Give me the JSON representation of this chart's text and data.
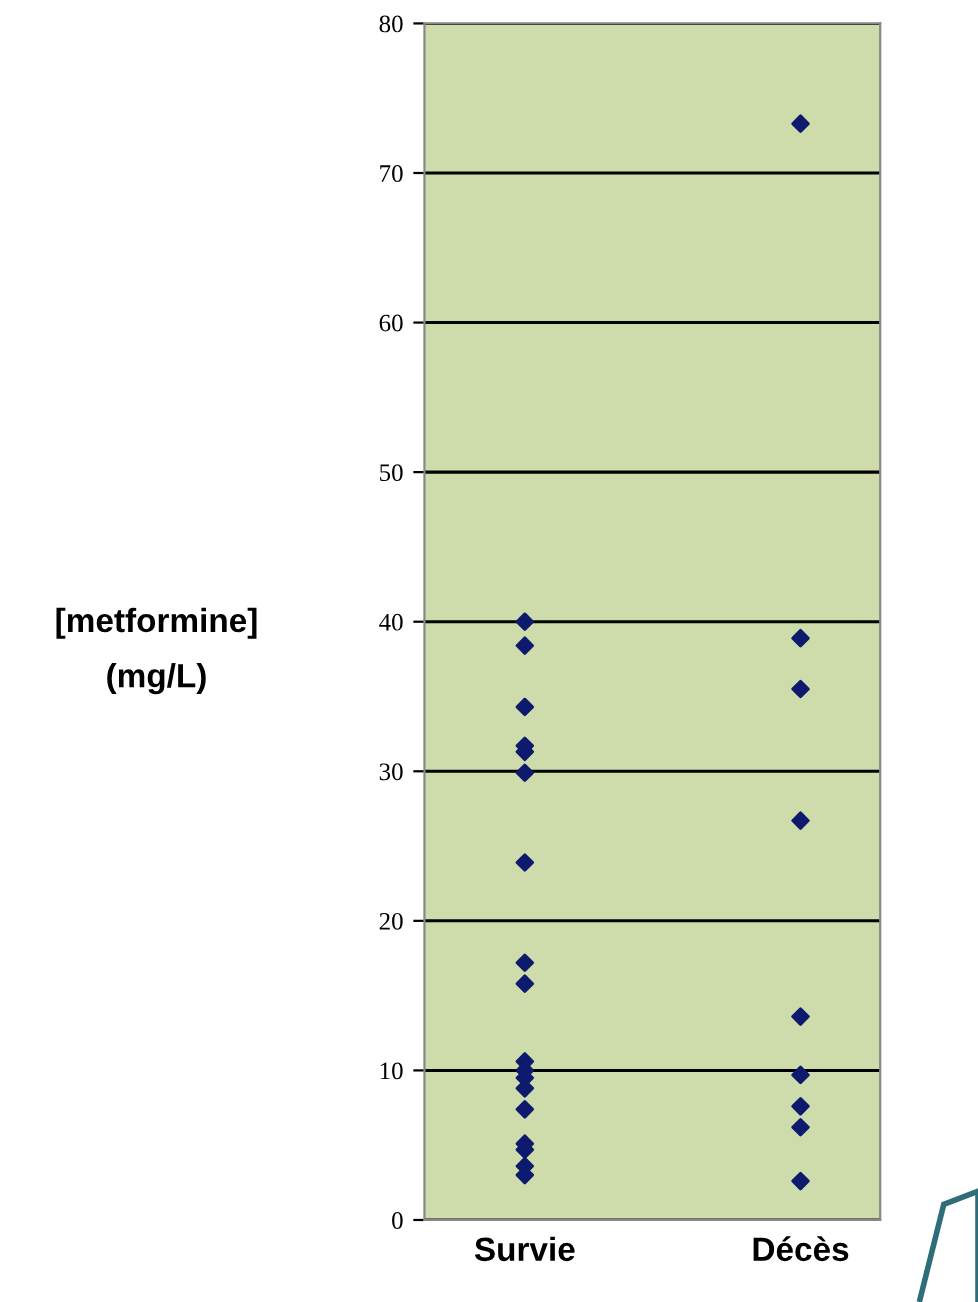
{
  "chart_data": {
    "type": "scatter",
    "ylabel": "[metformine]\n(mg/L)",
    "categories": [
      "Survie",
      "Décès"
    ],
    "series": [
      {
        "color": "#0d1a6e",
        "x": [
          "Survie",
          "Survie",
          "Survie",
          "Survie",
          "Survie",
          "Survie",
          "Survie",
          "Survie",
          "Survie",
          "Survie",
          "Survie",
          "Survie",
          "Survie",
          "Survie",
          "Survie",
          "Survie",
          "Survie",
          "Survie"
        ],
        "values": [
          40.0,
          38.4,
          34.3,
          31.7,
          31.3,
          29.9,
          23.9,
          17.2,
          15.8,
          10.6,
          10.0,
          9.5,
          8.8,
          7.4,
          5.1,
          4.7,
          3.6,
          3.0
        ]
      },
      {
        "color": "#0d1a6e",
        "x": [
          "Décès",
          "Décès",
          "Décès",
          "Décès",
          "Décès",
          "Décès",
          "Décès",
          "Décès",
          "Décès",
          "Décès"
        ],
        "values": [
          73.3,
          38.9,
          35.5,
          26.7,
          13.6,
          9.7,
          7.6,
          6.2,
          null,
          2.6
        ]
      }
    ],
    "ylim": [
      0,
      80
    ],
    "yticks": [
      0,
      10,
      20,
      30,
      40,
      50,
      60,
      70,
      80
    ],
    "grid": "y",
    "marker": "diamond",
    "legend": false
  }
}
